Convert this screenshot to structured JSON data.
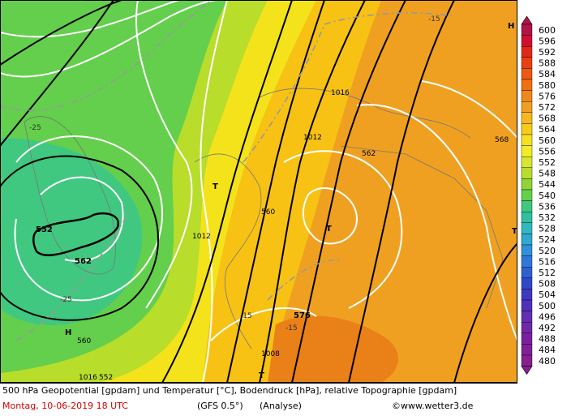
{
  "map": {
    "labels": [
      "552",
      "562",
      "-25",
      "-25",
      "1016",
      "1012",
      "1012",
      "1016",
      "560",
      "562",
      "568",
      "576",
      "-15",
      "-15",
      "-15",
      "1008",
      "T",
      "T",
      "T",
      "T",
      "H",
      "H",
      "552",
      "560"
    ],
    "legend": {
      "levels": [
        600,
        596,
        592,
        588,
        584,
        580,
        576,
        572,
        568,
        564,
        560,
        556,
        552,
        548,
        544,
        540,
        536,
        532,
        528,
        524,
        520,
        516,
        512,
        508,
        504,
        500,
        496,
        492,
        488,
        484,
        480
      ]
    },
    "footer": {
      "title": "500 hPa Geopotential [gpdam] und Temperatur [°C], Bodendruck [hPa], relative Topographie [gpdam]",
      "date": "Montag, 10-06-2019  18 UTC",
      "model": "(GFS 0.5°)",
      "run": "(Analyse)",
      "credit": "©www.wetter3.de"
    }
  }
}
